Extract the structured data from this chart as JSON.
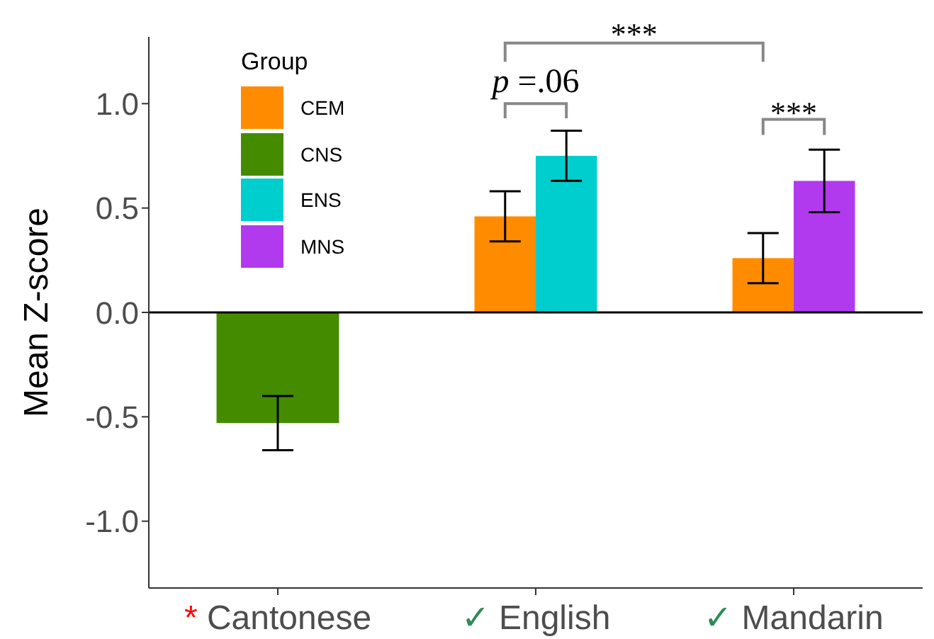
{
  "chart_data": {
    "type": "bar",
    "categories": [
      "* Cantonese",
      "✓ English",
      "✓ Mandarin"
    ],
    "ylabel": "Mean Z-score",
    "legend_title": "Group",
    "series": [
      {
        "name": "CEM",
        "color": "#ff8c00",
        "values": [
          null,
          0.46,
          0.26
        ],
        "errors": [
          null,
          0.12,
          0.12
        ]
      },
      {
        "name": "CNS",
        "color": "#458b00",
        "values": [
          -0.53,
          null,
          null
        ],
        "errors": [
          0.13,
          null,
          null
        ]
      },
      {
        "name": "ENS",
        "color": "#00cdcd",
        "values": [
          null,
          0.75,
          null
        ],
        "errors": [
          null,
          0.12,
          null
        ]
      },
      {
        "name": "MNS",
        "color": "#b23aee",
        "values": [
          null,
          null,
          0.63
        ],
        "errors": [
          null,
          null,
          0.15
        ]
      }
    ],
    "ylim": [
      -1.32,
      1.32
    ],
    "yticks": [
      {
        "value": -1,
        "label": "-1.0"
      },
      {
        "value": -0.5,
        "label": "-0.5"
      },
      {
        "value": 0,
        "label": "0.0"
      },
      {
        "value": 0.5,
        "label": "0.5"
      },
      {
        "value": 1,
        "label": "1.0"
      }
    ],
    "ref_lines": [
      {
        "axis": "y",
        "value": 0,
        "color": "#000000"
      }
    ],
    "annotations": [
      "p =.06",
      "***",
      "***"
    ],
    "legend": "top left"
  }
}
